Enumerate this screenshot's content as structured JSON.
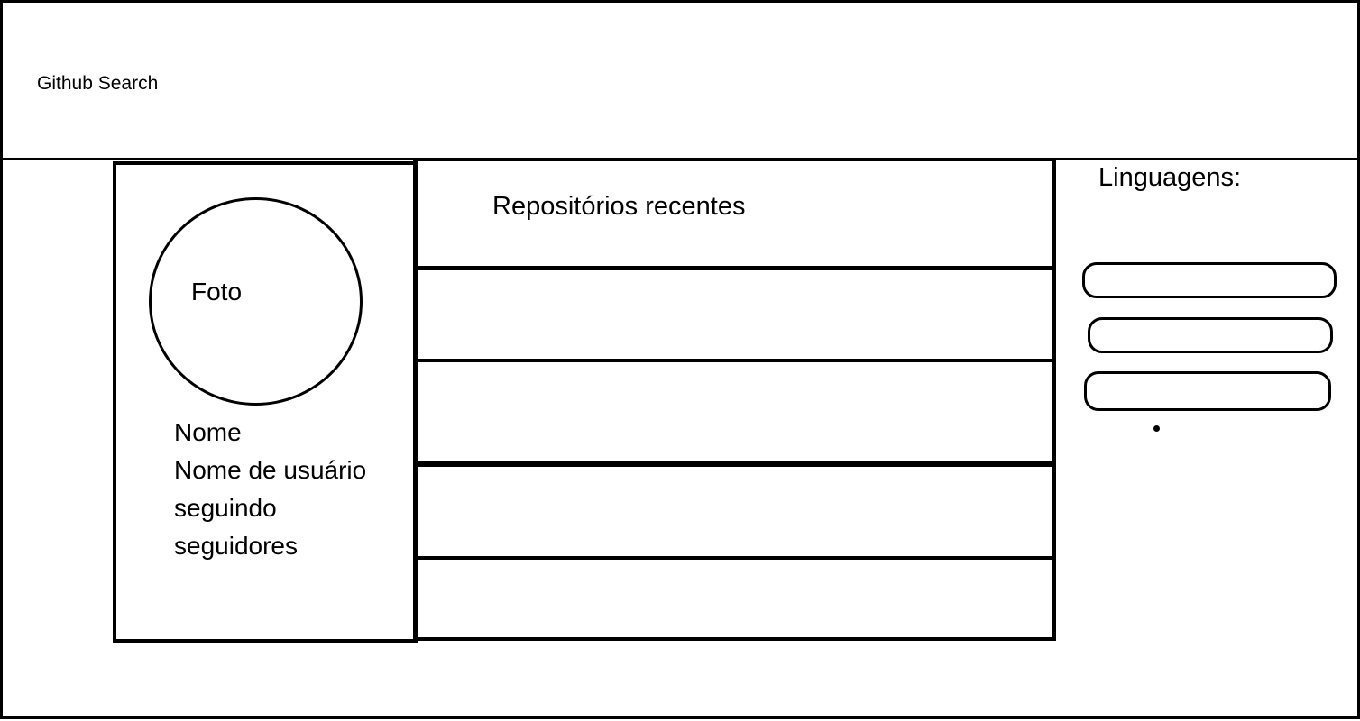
{
  "header": {
    "title": "Github Search"
  },
  "profile": {
    "photo_label": "Foto",
    "name": "Nome",
    "username": "Nome de usuário",
    "following": "seguindo",
    "followers": "seguidores"
  },
  "repositories": {
    "title": "Repositórios recentes",
    "items": [
      "",
      "",
      "",
      ""
    ]
  },
  "languages": {
    "title": "Linguagens:",
    "items": [
      "",
      "",
      ""
    ]
  }
}
